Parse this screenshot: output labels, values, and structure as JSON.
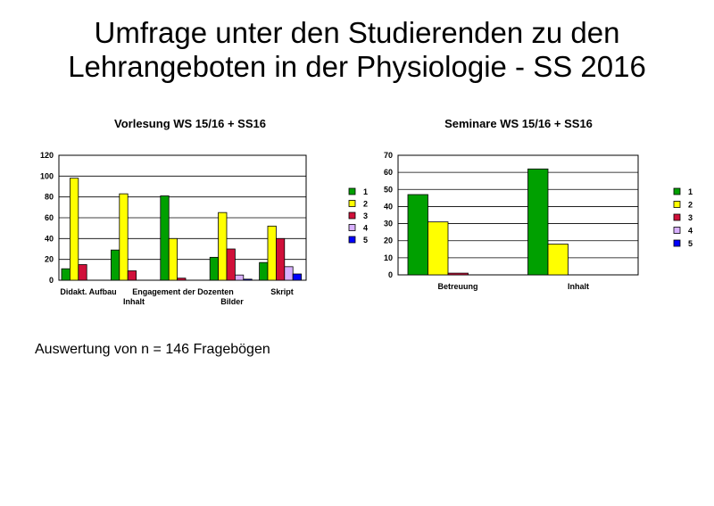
{
  "title": {
    "line1": "Umfrage unter den Studierenden zu den",
    "line2": "Lehrangeboten in der Physiologie - SS 2016"
  },
  "footnote": "Auswertung von n = 146 Fragebögen",
  "colors": {
    "1": "#00a000",
    "2": "#ffff00",
    "3": "#d0103a",
    "4": "#d8b0ff",
    "5": "#0000ff"
  },
  "chart_data": [
    {
      "type": "bar",
      "title": "Vorlesung WS 15/16 + SS16",
      "categories": [
        "Didakt. Aufbau",
        "Inhalt",
        "Engagement der Dozenten",
        "Bilder",
        "Skript"
      ],
      "category_labels": [
        {
          "text": "Didakt. Aufbau"
        },
        {
          "text": "Inhalt"
        },
        {
          "text": "Engagement der Dozenten"
        },
        {
          "text": "Bilder"
        },
        {
          "text": "Skript"
        }
      ],
      "series": [
        {
          "name": "1",
          "values": [
            11,
            29,
            81,
            22,
            17
          ]
        },
        {
          "name": "2",
          "values": [
            98,
            83,
            40,
            65,
            52
          ]
        },
        {
          "name": "3",
          "values": [
            15,
            9,
            2,
            30,
            40
          ]
        },
        {
          "name": "4",
          "values": [
            0,
            0,
            0,
            5,
            13
          ]
        },
        {
          "name": "5",
          "values": [
            0,
            0,
            0,
            1,
            6
          ]
        }
      ],
      "ylim": [
        0,
        120
      ],
      "yticks": [
        0,
        20,
        40,
        60,
        80,
        100,
        120
      ],
      "grid": true,
      "legend": "right"
    },
    {
      "type": "bar",
      "title": "Seminare WS 15/16 + SS16",
      "categories": [
        "Betreuung",
        "Inhalt"
      ],
      "category_labels": [
        {
          "text": "Betreuung"
        },
        {
          "text": "Inhalt"
        }
      ],
      "series": [
        {
          "name": "1",
          "values": [
            47,
            62
          ]
        },
        {
          "name": "2",
          "values": [
            31,
            18
          ]
        },
        {
          "name": "3",
          "values": [
            1,
            0
          ]
        },
        {
          "name": "4",
          "values": [
            0,
            0
          ]
        },
        {
          "name": "5",
          "values": [
            0,
            0
          ]
        }
      ],
      "ylim": [
        0,
        70
      ],
      "yticks": [
        0,
        10,
        20,
        30,
        40,
        50,
        60,
        70
      ],
      "grid": true,
      "legend": "right"
    }
  ]
}
